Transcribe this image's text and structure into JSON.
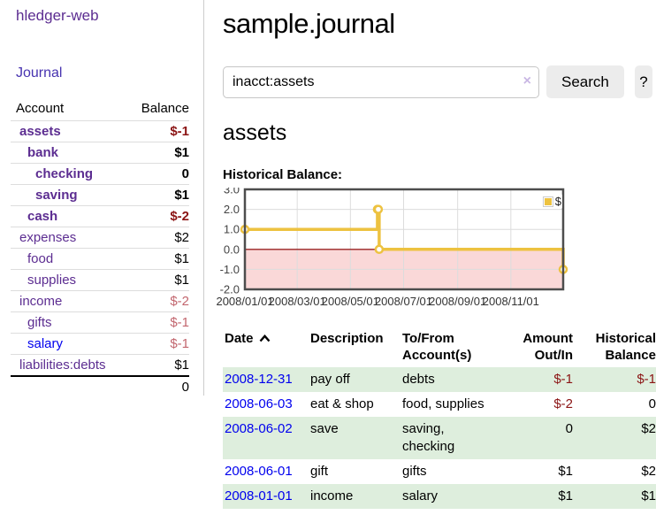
{
  "app": {
    "title": "hledger-web"
  },
  "sidebar": {
    "nav_journal": "Journal",
    "accounts": {
      "header_account": "Account",
      "header_balance": "Balance",
      "rows": [
        {
          "account": "assets",
          "balance": "$-1"
        },
        {
          "account": "bank",
          "balance": "$1"
        },
        {
          "account": "checking",
          "balance": "0"
        },
        {
          "account": "saving",
          "balance": "$1"
        },
        {
          "account": "cash",
          "balance": "$-2"
        },
        {
          "account": "expenses",
          "balance": "$2"
        },
        {
          "account": "food",
          "balance": "$1"
        },
        {
          "account": "supplies",
          "balance": "$1"
        },
        {
          "account": "income",
          "balance": "$-2"
        },
        {
          "account": "gifts",
          "balance": "$-1"
        },
        {
          "account": "salary",
          "balance": "$-1"
        },
        {
          "account": "liabilities:debts",
          "balance": "$1"
        }
      ],
      "total": "0"
    }
  },
  "main": {
    "title": "sample.journal",
    "search": {
      "value": "inacct:assets",
      "clear_label": "×",
      "search_button": "Search",
      "help_button": "?"
    },
    "account_heading": "assets",
    "chart_label": "Historical Balance:"
  },
  "chart_data": {
    "type": "line",
    "step": true,
    "title": "Historical Balance:",
    "series": [
      {
        "name": "$",
        "color": "#edc240",
        "points": [
          [
            "2008-01-01",
            1
          ],
          [
            "2008-06-01",
            2
          ],
          [
            "2008-06-02",
            2
          ],
          [
            "2008-06-03",
            0
          ],
          [
            "2008-12-31",
            -1
          ]
        ]
      }
    ],
    "xlim": [
      "2008-01-01",
      "2008-12-31"
    ],
    "ylim": [
      -2,
      3
    ],
    "ytick_values": [
      3,
      2,
      1,
      0,
      -1,
      -2
    ],
    "ytick_labels": [
      "3.0",
      "2.0",
      "1.0",
      "0.0",
      "-1.0",
      "-2.0"
    ],
    "xtick_dates": [
      "2008-01-01",
      "2008-03-01",
      "2008-05-01",
      "2008-07-01",
      "2008-09-01",
      "2008-11-01"
    ],
    "xtick_labels": [
      "2008/01/01",
      "2008/03/01",
      "2008/05/01",
      "2008/07/01",
      "2008/09/01",
      "2008/11/01"
    ],
    "grid": true,
    "legend_position": "top-right",
    "colors": {
      "line": "#edc240",
      "negative_fill": "#fad8d8",
      "zero_line": "#992222",
      "grid": "#dcdcdc",
      "border": "#4d4d4d"
    }
  },
  "register": {
    "headers": {
      "date": "Date",
      "description": "Description",
      "account": "To/From Account(s)",
      "amount": "Amount Out/In",
      "balance": "Historical Balance"
    },
    "rows": [
      {
        "date": "2008-12-31",
        "description": "pay off",
        "account": "debts",
        "amount": "$-1",
        "balance": "$-1"
      },
      {
        "date": "2008-06-03",
        "description": "eat & shop",
        "account": "food, supplies",
        "amount": "$-2",
        "balance": "0"
      },
      {
        "date": "2008-06-02",
        "description": "save",
        "account": "saving,\nchecking",
        "amount": "0",
        "balance": "$2"
      },
      {
        "date": "2008-06-01",
        "description": "gift",
        "account": "gifts",
        "amount": "$1",
        "balance": "$2"
      },
      {
        "date": "2008-01-01",
        "description": "income",
        "account": "salary",
        "amount": "$1",
        "balance": "$1"
      }
    ]
  }
}
